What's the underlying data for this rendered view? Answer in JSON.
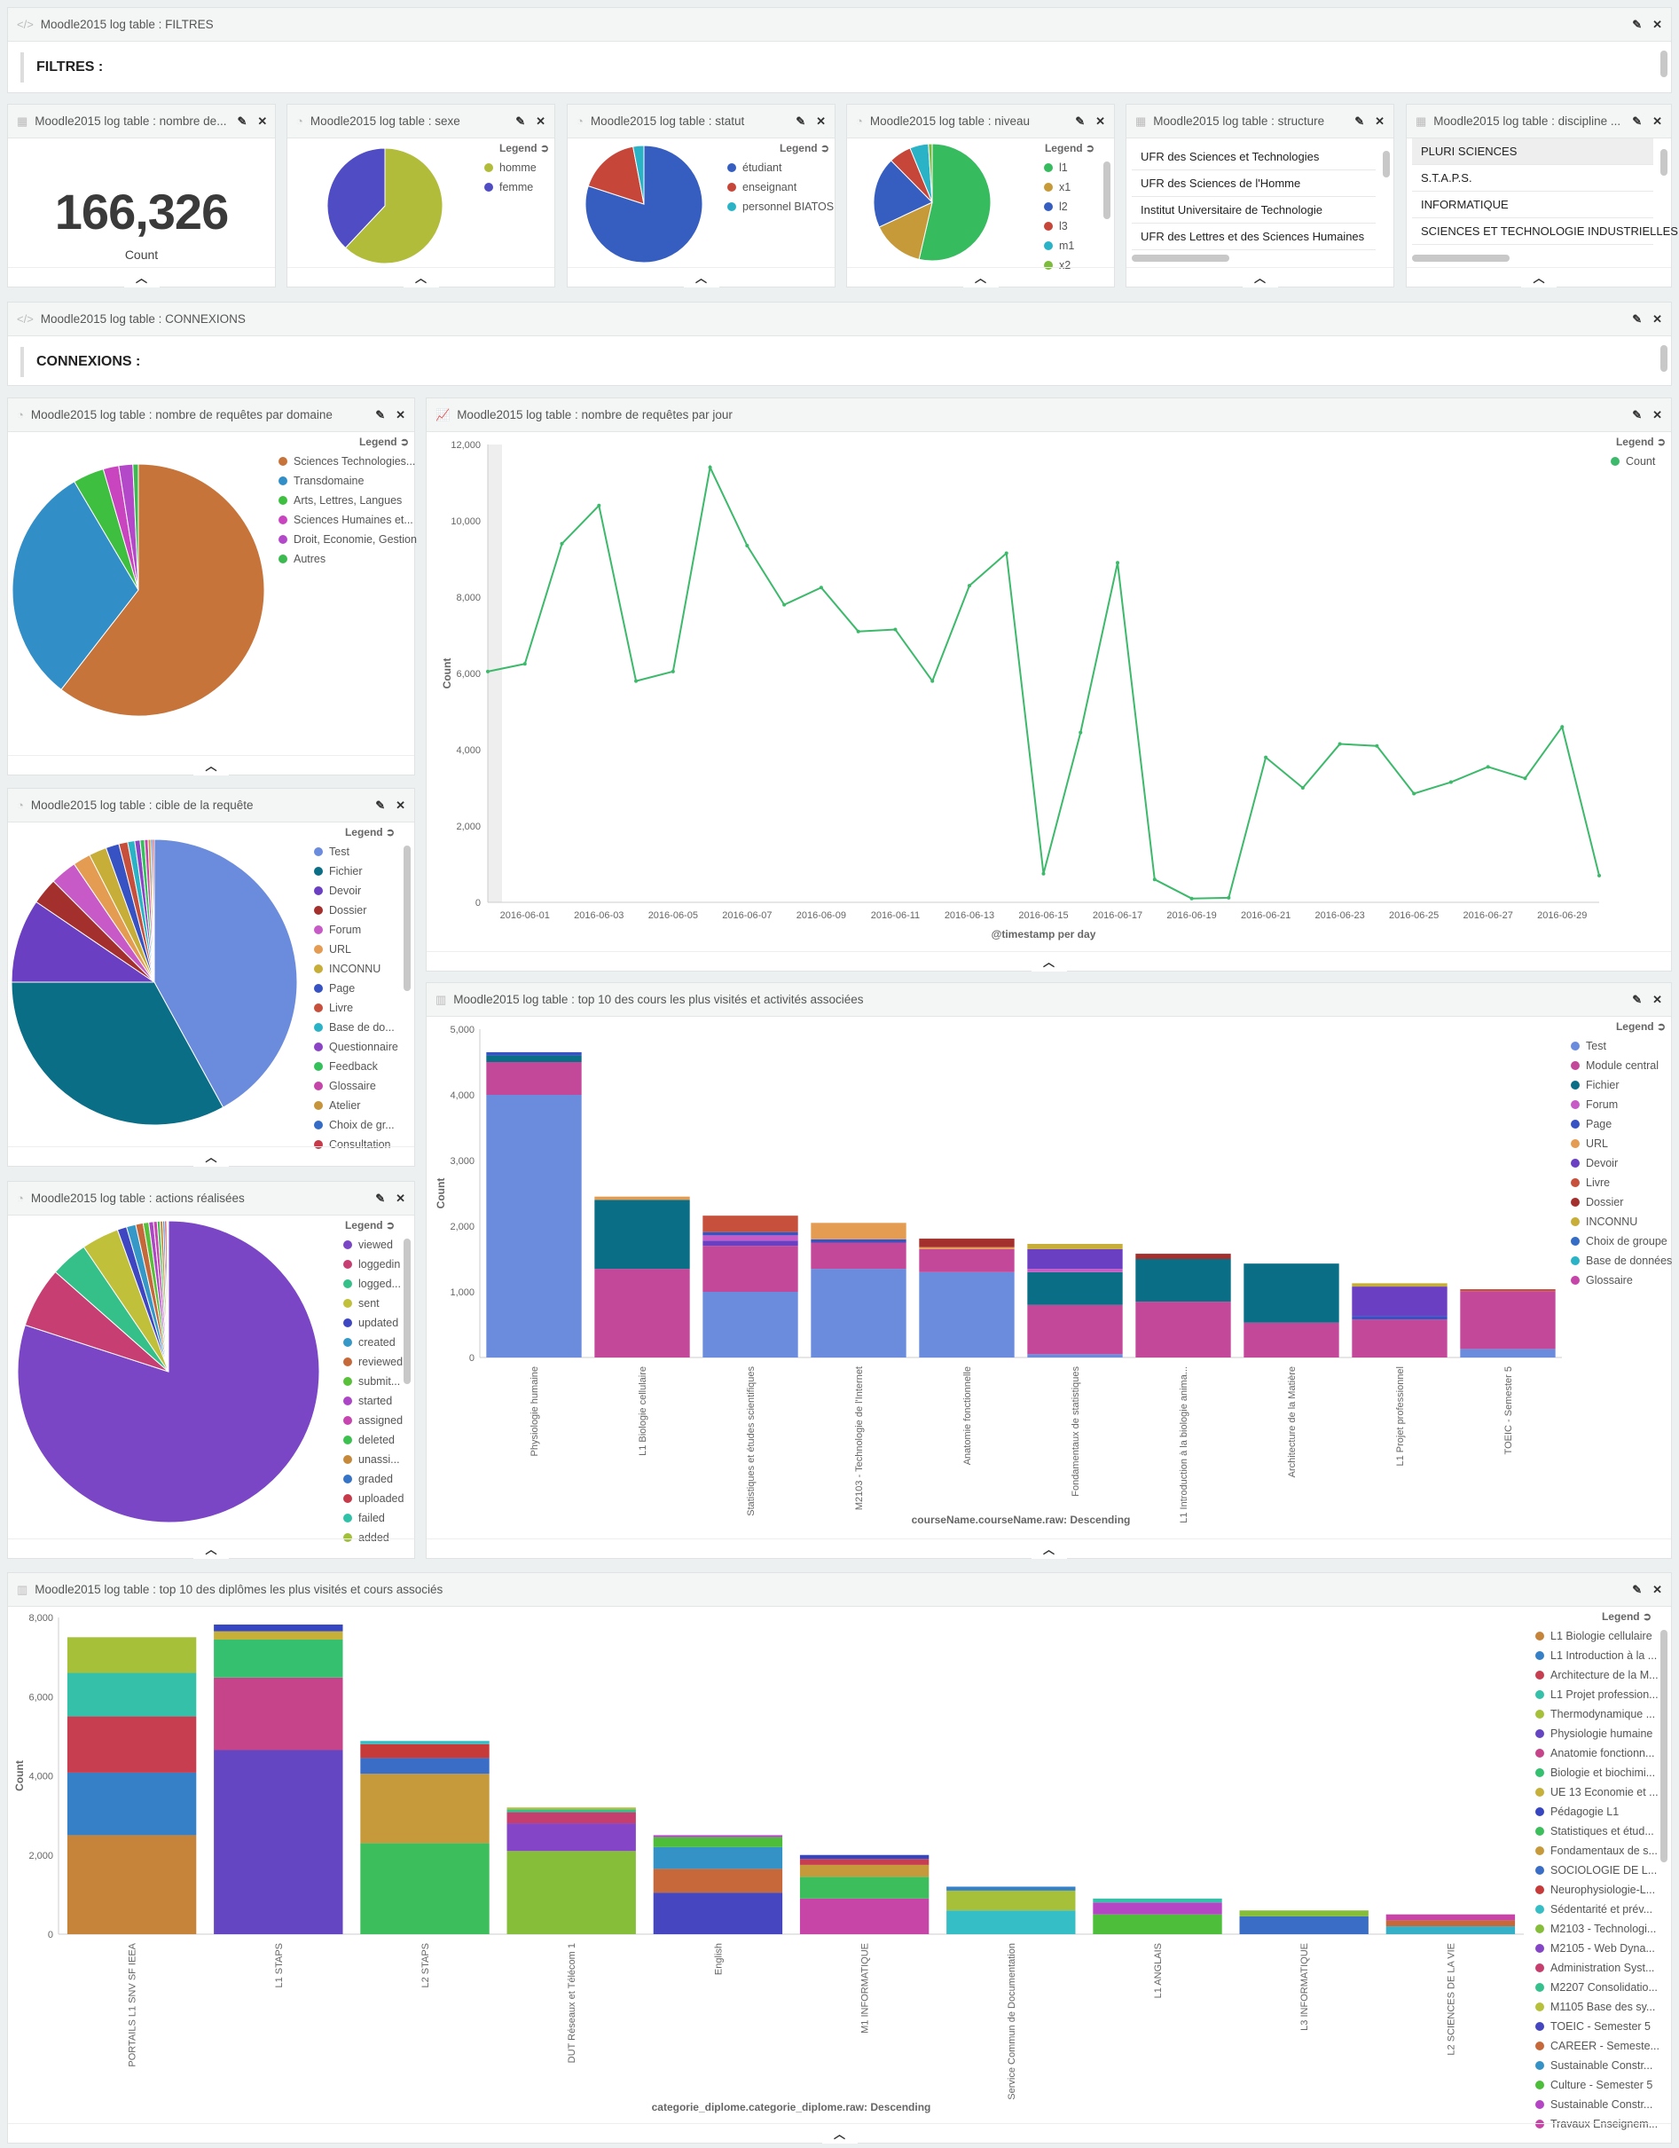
{
  "filtres": {
    "title": "Moodle2015 log table : FILTRES",
    "heading": "FILTRES :"
  },
  "connexions": {
    "title": "Moodle2015 log table : CONNEXIONS",
    "heading": "CONNEXIONS :"
  },
  "count_panel": {
    "title": "Moodle2015 log table : nombre de...",
    "value": "166,326",
    "label": "Count"
  },
  "sexe": {
    "title": "Moodle2015 log table : sexe",
    "legend_title": "Legend",
    "chart_data": {
      "type": "pie",
      "labels": [
        "homme",
        "femme"
      ],
      "values": [
        62,
        38
      ],
      "colors": [
        "#b0bc3a",
        "#4f4cc4"
      ]
    }
  },
  "statut": {
    "title": "Moodle2015 log table : statut",
    "legend_title": "Legend",
    "chart_data": {
      "type": "pie",
      "labels": [
        "étudiant",
        "enseignant",
        "personnel BIATOS"
      ],
      "values": [
        80,
        17,
        3
      ],
      "colors": [
        "#355ec0",
        "#c6463a",
        "#2ab3c6"
      ]
    }
  },
  "niveau": {
    "title": "Moodle2015 log table : niveau",
    "legend_title": "Legend",
    "chart_data": {
      "type": "pie",
      "labels": [
        "l1",
        "x1",
        "l2",
        "l3",
        "m1",
        "x2"
      ],
      "values": [
        52,
        14,
        19,
        6,
        5,
        1
      ],
      "colors": [
        "#36bb5f",
        "#c69a38",
        "#355ec0",
        "#c6463a",
        "#2ab3c6",
        "#7dbb3a"
      ]
    }
  },
  "structure": {
    "title": "Moodle2015 log table : structure",
    "rows": [
      "UFR des Sciences et Technologies",
      "UFR des Sciences de l'Homme",
      "Institut Universitaire de Technologie",
      "UFR des Lettres et des Sciences Humaines"
    ]
  },
  "discipline": {
    "title": "Moodle2015 log table : discipline ...",
    "rows": [
      "PLURI SCIENCES",
      "S.T.A.P.S.",
      "INFORMATIQUE",
      "SCIENCES ET TECHNOLOGIE INDUSTRIELLES"
    ]
  },
  "domaine": {
    "title": "Moodle2015 log table : nombre de requêtes par domaine",
    "legend_title": "Legend",
    "chart_data": {
      "type": "pie",
      "labels": [
        "Sciences Technologies...",
        "Transdomaine",
        "Arts, Lettres, Langues",
        "Sciences Humaines et...",
        "Droit, Economie, Gestion",
        "Autres"
      ],
      "values": [
        60.5,
        31,
        4,
        2,
        1.8,
        0.7
      ],
      "colors": [
        "#c6743a",
        "#318ec6",
        "#3fbf3f",
        "#c945c0",
        "#b349c9",
        "#3cba50"
      ]
    }
  },
  "jour": {
    "title": "Moodle2015 log table : nombre de requêtes par jour",
    "legend_title": "Legend",
    "chart_data": {
      "type": "line",
      "xlabel": "@timestamp per day",
      "ylabel": "Count",
      "series_name": "Count",
      "color": "#3cb96a",
      "ylim": [
        0,
        12000
      ],
      "yticks": [
        "0",
        "2,000",
        "4,000",
        "6,000",
        "8,000",
        "10,000",
        "12,000"
      ],
      "xticks": [
        "2016-06-01",
        "2016-06-03",
        "2016-06-05",
        "2016-06-07",
        "2016-06-09",
        "2016-06-11",
        "2016-06-13",
        "2016-06-15",
        "2016-06-17",
        "2016-06-19",
        "2016-06-21",
        "2016-06-23",
        "2016-06-25",
        "2016-06-27",
        "2016-06-29"
      ],
      "x": [
        "2016-05-31",
        "2016-06-01",
        "2016-06-02",
        "2016-06-03",
        "2016-06-04",
        "2016-06-05",
        "2016-06-06",
        "2016-06-07",
        "2016-06-08",
        "2016-06-09",
        "2016-06-10",
        "2016-06-11",
        "2016-06-12",
        "2016-06-13",
        "2016-06-14",
        "2016-06-15",
        "2016-06-16",
        "2016-06-17",
        "2016-06-18",
        "2016-06-19",
        "2016-06-20",
        "2016-06-21",
        "2016-06-22",
        "2016-06-23",
        "2016-06-24",
        "2016-06-25",
        "2016-06-26",
        "2016-06-27",
        "2016-06-28",
        "2016-06-29",
        "2016-06-30"
      ],
      "y": [
        6050,
        6250,
        9400,
        10400,
        5800,
        6050,
        11400,
        9350,
        7800,
        8250,
        7100,
        7150,
        5800,
        8300,
        9150,
        750,
        4450,
        8900,
        600,
        100,
        120,
        3800,
        3000,
        4150,
        4100,
        2850,
        3150,
        3550,
        3250,
        4600,
        700
      ]
    }
  },
  "cible": {
    "title": "Moodle2015 log table : cible de la requête",
    "legend_title": "Legend",
    "chart_data": {
      "type": "pie",
      "labels": [
        "Test",
        "Fichier",
        "Devoir",
        "Dossier",
        "Forum",
        "URL",
        "INCONNU",
        "Page",
        "Livre",
        "Base de do...",
        "Questionnaire",
        "Feedback",
        "Glossaire",
        "Atelier",
        "Choix de gr...",
        "Consultation"
      ],
      "values": [
        42,
        33,
        9.5,
        3,
        3,
        2,
        2,
        1.5,
        1,
        0.8,
        0.6,
        0.5,
        0.4,
        0.3,
        0.2,
        0.2
      ],
      "colors": [
        "#6b8cdc",
        "#0a6e86",
        "#6a3fc2",
        "#a4302e",
        "#c75ac6",
        "#e49c52",
        "#c6ae38",
        "#3752c2",
        "#c6503c",
        "#2ab3c6",
        "#8b44c6",
        "#34c05a",
        "#c545a9",
        "#c6943a",
        "#356dc6",
        "#c63a4a"
      ]
    }
  },
  "courses": {
    "title": "Moodle2015 log table : top 10 des cours les plus visités et activités associées",
    "legend_title": "Legend",
    "chart_data": {
      "type": "bar",
      "stacked": true,
      "xlabel": "courseName.courseName.raw: Descending",
      "ylabel": "Count",
      "ylim": [
        0,
        5000
      ],
      "yticks": [
        "0",
        "1,000",
        "2,000",
        "3,000",
        "4,000",
        "5,000"
      ],
      "series": [
        {
          "name": "Test",
          "color": "#6b8cdc"
        },
        {
          "name": "Module central",
          "color": "#c4489a"
        },
        {
          "name": "Fichier",
          "color": "#0a6e86"
        },
        {
          "name": "Forum",
          "color": "#c75ac6"
        },
        {
          "name": "Page",
          "color": "#3752c2"
        },
        {
          "name": "URL",
          "color": "#e49c52"
        },
        {
          "name": "Devoir",
          "color": "#6a3fc2"
        },
        {
          "name": "Livre",
          "color": "#c6503c"
        },
        {
          "name": "Dossier",
          "color": "#a4302e"
        },
        {
          "name": "INCONNU",
          "color": "#c6ae38"
        },
        {
          "name": "Choix de groupe",
          "color": "#356dc6"
        },
        {
          "name": "Base de données",
          "color": "#2ab3c6"
        },
        {
          "name": "Glossaire",
          "color": "#c545a9"
        }
      ],
      "categories": [
        "Physiologie humaine",
        "L1 Biologie cellulaire",
        "Statistiques et études scientifiques",
        "M2103 - Technologie de l'Internet",
        "Anatomie fonctionnelle",
        "Fondamentaux de statistiques",
        "L1 Introduction à la biologie anima...",
        "Architecture de la Matière",
        "L1 Projet professionnel",
        "TOEIC - Semester 5"
      ],
      "values": [
        {
          "Test": 4000,
          "Module central": 500,
          "Fichier": 100,
          "Page": 50
        },
        {
          "Module central": 1350,
          "Fichier": 1050,
          "URL": 50
        },
        {
          "Test": 1000,
          "Module central": 700,
          "Devoir": 80,
          "Forum": 80,
          "Page": 50,
          "Livre": 250
        },
        {
          "Test": 1350,
          "Module central": 400,
          "Page": 50,
          "URL": 250
        },
        {
          "Test": 1300,
          "Module central": 350,
          "URL": 30,
          "Dossier": 130
        },
        {
          "Test": 50,
          "Module central": 750,
          "Fichier": 500,
          "Forum": 50,
          "Devoir": 300,
          "INCONNU": 80
        },
        {
          "Module central": 850,
          "Fichier": 650,
          "Dossier": 80
        },
        {
          "Module central": 530,
          "Fichier": 900
        },
        {
          "Module central": 580,
          "Page": 50,
          "Devoir": 450,
          "INCONNU": 50
        },
        {
          "Test": 130,
          "Module central": 880,
          "Livre": 30
        }
      ]
    }
  },
  "actions": {
    "title": "Moodle2015 log table : actions réalisées",
    "legend_title": "Legend",
    "chart_data": {
      "type": "pie",
      "labels": [
        "viewed",
        "loggedin",
        "logged...",
        "sent",
        "updated",
        "created",
        "reviewed",
        "submit...",
        "started",
        "assigned",
        "deleted",
        "unassi...",
        "graded",
        "uploaded",
        "failed",
        "added"
      ],
      "values": [
        80,
        6.5,
        4,
        4,
        1,
        1,
        0.8,
        0.6,
        0.5,
        0.4,
        0.3,
        0.3,
        0.2,
        0.2,
        0.1,
        0.1
      ],
      "colors": [
        "#7a46c6",
        "#c63e72",
        "#35c08a",
        "#c0c03a",
        "#3f46c2",
        "#3598c6",
        "#c6693a",
        "#58c03a",
        "#ac46c6",
        "#c645b0",
        "#3cc050",
        "#c6893a",
        "#3574c6",
        "#c63a4a",
        "#2fc2a8",
        "#a2c03a"
      ]
    }
  },
  "diplomes": {
    "title": "Moodle2015 log table : top 10 des diplômes les plus visités et cours associés",
    "legend_title": "Legend",
    "chart_data": {
      "type": "bar",
      "stacked": true,
      "xlabel": "categorie_diplome.categorie_diplome.raw: Descending",
      "ylabel": "Count",
      "ylim": [
        0,
        8000
      ],
      "yticks": [
        "0",
        "2,000",
        "4,000",
        "6,000",
        "8,000"
      ],
      "series": [
        {
          "name": "L1 Biologie cellulaire",
          "color": "#c6843a"
        },
        {
          "name": "L1 Introduction à la ...",
          "color": "#3580c6"
        },
        {
          "name": "Architecture de la M...",
          "color": "#c63e50"
        },
        {
          "name": "L1 Projet profession...",
          "color": "#35c0aa"
        },
        {
          "name": "Thermodynamique ...",
          "color": "#a6c03a"
        },
        {
          "name": "Physiologie humaine",
          "color": "#6446c2"
        },
        {
          "name": "Anatomie fonctionn...",
          "color": "#c6448a"
        },
        {
          "name": "Biologie et biochimi...",
          "color": "#35c070"
        },
        {
          "name": "UE 13 Economie et ...",
          "color": "#c6b03a"
        },
        {
          "name": "Pédagogie L1",
          "color": "#3546c0"
        },
        {
          "name": "Statistiques et étud...",
          "color": "#3cbe5c"
        },
        {
          "name": "Fondamentaux de s...",
          "color": "#c69a3a"
        },
        {
          "name": "SOCIOLOGIE DE L...",
          "color": "#3a6ec6"
        },
        {
          "name": "Neurophysiologie-L...",
          "color": "#c63a3a"
        },
        {
          "name": "Sédentarité et prév...",
          "color": "#35bec6"
        },
        {
          "name": "M2103 - Technologi...",
          "color": "#86be3a"
        },
        {
          "name": "M2105 - Web Dyna...",
          "color": "#8446c6"
        },
        {
          "name": "Administration Syst...",
          "color": "#c63e6e"
        },
        {
          "name": "M2207 Consolidatio...",
          "color": "#35c08e"
        },
        {
          "name": "M1105 Base des sy...",
          "color": "#b6c03a"
        },
        {
          "name": "TOEIC - Semester 5",
          "color": "#4646c0"
        },
        {
          "name": "CAREER - Semeste...",
          "color": "#c6683a"
        },
        {
          "name": "Sustainable Constr...",
          "color": "#3592c6"
        },
        {
          "name": "Culture - Semester 5",
          "color": "#4cbe3a"
        },
        {
          "name": "Sustainable Constr... ",
          "color": "#b446c6"
        },
        {
          "name": "Travaux Enseignem...",
          "color": "#c645a6"
        }
      ],
      "categories": [
        "PORTAILS L1 SNV SF IEEA",
        "L1 STAPS",
        "L2 STAPS",
        "DUT Réseaux et Télécom 1",
        "English",
        "M1 INFORMATIQUE",
        "Service Commun de Documentation",
        "L1 ANGLAIS",
        "L3 INFORMATIQUE",
        "L2 SCIENCES DE LA VIE"
      ],
      "values": [
        [
          [
            "#c6843a",
            2500
          ],
          [
            "#3580c6",
            1580
          ],
          [
            "#c63e50",
            1420
          ],
          [
            "#35c0aa",
            1100
          ],
          [
            "#a6c03a",
            900
          ]
        ],
        [
          [
            "#6446c2",
            4650
          ],
          [
            "#c6448a",
            1830
          ],
          [
            "#35c070",
            960
          ],
          [
            "#c6b03a",
            210
          ],
          [
            "#3546c0",
            170
          ]
        ],
        [
          [
            "#3cbe5c",
            2300
          ],
          [
            "#c69a3a",
            1750
          ],
          [
            "#3a6ec6",
            400
          ],
          [
            "#c63a3a",
            350
          ],
          [
            "#35bec6",
            80
          ]
        ],
        [
          [
            "#86be3a",
            2100
          ],
          [
            "#8446c6",
            700
          ],
          [
            "#c63e6e",
            280
          ],
          [
            "#35c08e",
            70
          ],
          [
            "#b6c03a",
            50
          ]
        ],
        [
          [
            "#4646c0",
            1050
          ],
          [
            "#c6683a",
            600
          ],
          [
            "#3592c6",
            550
          ],
          [
            "#4cbe3a",
            250
          ],
          [
            "#b446c6",
            50
          ]
        ],
        [
          [
            "#c645a6",
            900
          ],
          [
            "#3cbe5c",
            550
          ],
          [
            "#c69a3a",
            300
          ],
          [
            "#c63e50",
            150
          ],
          [
            "#3546c0",
            100
          ]
        ],
        [
          [
            "#35bec6",
            600
          ],
          [
            "#a6c03a",
            500
          ],
          [
            "#3580c6",
            100
          ]
        ],
        [
          [
            "#4cbe3a",
            500
          ],
          [
            "#b446c6",
            300
          ],
          [
            "#35c0aa",
            100
          ]
        ],
        [
          [
            "#3a6ec6",
            450
          ],
          [
            "#86be3a",
            150
          ]
        ],
        [
          [
            "#35b0c6",
            200
          ],
          [
            "#c6683a",
            150
          ],
          [
            "#c645a6",
            150
          ]
        ]
      ]
    }
  }
}
